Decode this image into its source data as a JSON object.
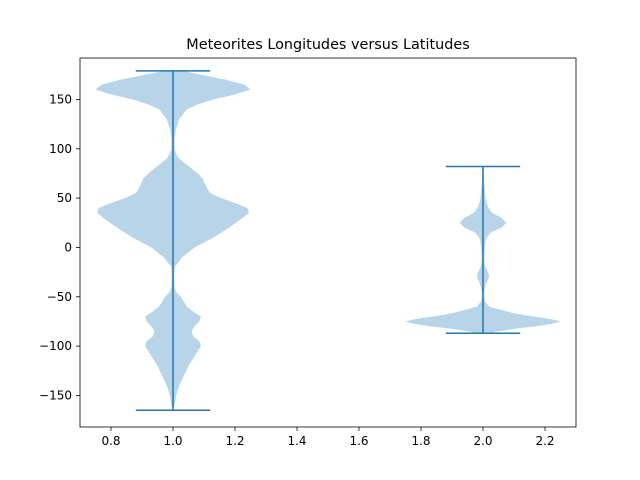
{
  "chart_data": {
    "type": "violin",
    "title": "Meteorites Longitudes versus Latitudes",
    "xlabel": "",
    "ylabel": "",
    "xlim": [
      0.7,
      2.3
    ],
    "ylim": [
      -182,
      192
    ],
    "grid": false,
    "x_ticks": [
      0.8,
      1.0,
      1.2,
      1.4,
      1.6,
      1.8,
      2.0,
      2.2
    ],
    "x_tick_labels": [
      "0.8",
      "1.0",
      "1.2",
      "1.4",
      "1.6",
      "1.8",
      "2.0",
      "2.2"
    ],
    "y_ticks": [
      -150,
      -100,
      -50,
      0,
      50,
      100,
      150
    ],
    "y_tick_labels": [
      "−150",
      "−100",
      "−50",
      "0",
      "50",
      "100",
      "150"
    ],
    "fill_color": "#b8d4e8",
    "line_color": "#1f77b4",
    "violins": [
      {
        "position": 1.0,
        "min": -165,
        "max": 179,
        "halfwidth_units": 0.25,
        "profile": [
          [
            -165,
            0.0
          ],
          [
            -160,
            0.005
          ],
          [
            -150,
            0.01
          ],
          [
            -140,
            0.02
          ],
          [
            -130,
            0.035
          ],
          [
            -120,
            0.05
          ],
          [
            -110,
            0.07
          ],
          [
            -100,
            0.09
          ],
          [
            -95,
            0.085
          ],
          [
            -90,
            0.065
          ],
          [
            -85,
            0.06
          ],
          [
            -80,
            0.07
          ],
          [
            -75,
            0.085
          ],
          [
            -70,
            0.09
          ],
          [
            -65,
            0.065
          ],
          [
            -60,
            0.045
          ],
          [
            -55,
            0.035
          ],
          [
            -50,
            0.025
          ],
          [
            -45,
            0.01
          ],
          [
            -40,
            0.005
          ],
          [
            -30,
            0.004
          ],
          [
            -20,
            0.005
          ],
          [
            -10,
            0.03
          ],
          [
            0,
            0.07
          ],
          [
            10,
            0.13
          ],
          [
            20,
            0.18
          ],
          [
            30,
            0.225
          ],
          [
            35,
            0.245
          ],
          [
            40,
            0.24
          ],
          [
            45,
            0.2
          ],
          [
            50,
            0.155
          ],
          [
            55,
            0.12
          ],
          [
            60,
            0.11
          ],
          [
            70,
            0.095
          ],
          [
            75,
            0.08
          ],
          [
            80,
            0.06
          ],
          [
            85,
            0.04
          ],
          [
            90,
            0.02
          ],
          [
            95,
            0.01
          ],
          [
            100,
            0.005
          ],
          [
            110,
            0.005
          ],
          [
            120,
            0.01
          ],
          [
            130,
            0.02
          ],
          [
            140,
            0.045
          ],
          [
            145,
            0.08
          ],
          [
            150,
            0.13
          ],
          [
            155,
            0.2
          ],
          [
            160,
            0.25
          ],
          [
            165,
            0.23
          ],
          [
            170,
            0.17
          ],
          [
            175,
            0.09
          ],
          [
            179,
            0.03
          ]
        ]
      },
      {
        "position": 2.0,
        "min": -87,
        "max": 82,
        "halfwidth_units": 0.25,
        "profile": [
          [
            -87,
            0.02
          ],
          [
            -85,
            0.05
          ],
          [
            -82,
            0.11
          ],
          [
            -80,
            0.17
          ],
          [
            -77,
            0.23
          ],
          [
            -75,
            0.25
          ],
          [
            -72,
            0.21
          ],
          [
            -69,
            0.14
          ],
          [
            -66,
            0.09
          ],
          [
            -63,
            0.055
          ],
          [
            -60,
            0.02
          ],
          [
            -55,
            0.007
          ],
          [
            -50,
            0.004
          ],
          [
            -45,
            0.004
          ],
          [
            -40,
            0.007
          ],
          [
            -35,
            0.012
          ],
          [
            -30,
            0.02
          ],
          [
            -25,
            0.016
          ],
          [
            -20,
            0.008
          ],
          [
            -15,
            0.005
          ],
          [
            -10,
            0.004
          ],
          [
            -5,
            0.005
          ],
          [
            0,
            0.006
          ],
          [
            5,
            0.008
          ],
          [
            10,
            0.012
          ],
          [
            15,
            0.025
          ],
          [
            20,
            0.06
          ],
          [
            25,
            0.075
          ],
          [
            30,
            0.06
          ],
          [
            35,
            0.03
          ],
          [
            40,
            0.018
          ],
          [
            45,
            0.012
          ],
          [
            50,
            0.008
          ],
          [
            60,
            0.005
          ],
          [
            70,
            0.003
          ],
          [
            82,
            0.002
          ]
        ]
      }
    ]
  }
}
